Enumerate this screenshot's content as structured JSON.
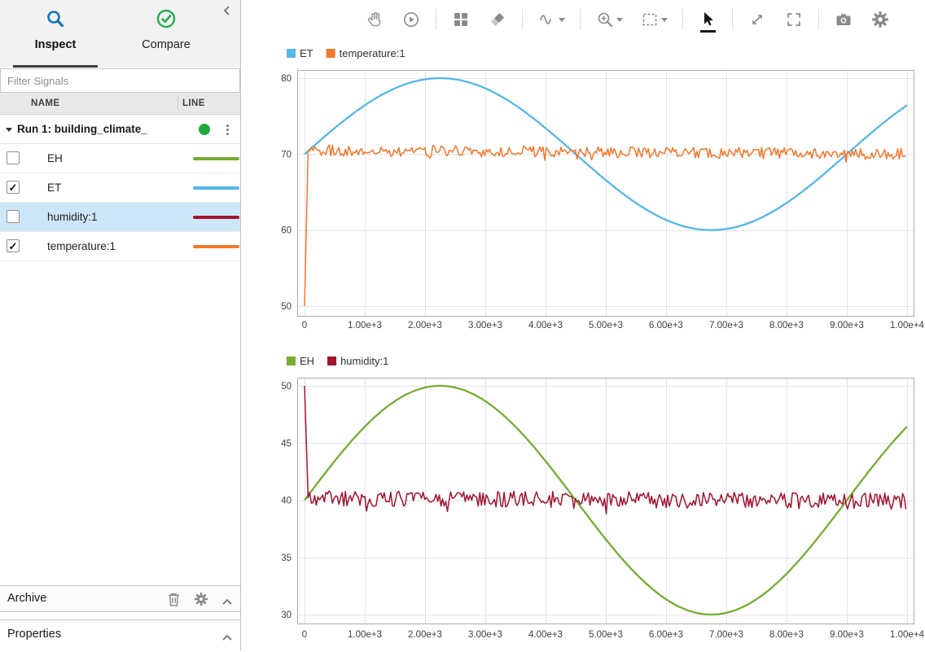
{
  "sidebar": {
    "tabs": [
      {
        "label": "Inspect",
        "active": true,
        "icon": "magnifier-icon"
      },
      {
        "label": "Compare",
        "active": false,
        "icon": "check-circle-icon"
      }
    ],
    "filter_placeholder": "Filter Signals",
    "table": {
      "columns": [
        "NAME",
        "LINE"
      ]
    },
    "run": {
      "label": "Run 1: building_climate_",
      "status_color": "#22a93c"
    },
    "signals": [
      {
        "name": "EH",
        "checked": false,
        "selected": false,
        "color": "#77ac30"
      },
      {
        "name": "ET",
        "checked": true,
        "selected": false,
        "color": "#53b7ea"
      },
      {
        "name": "humidity:1",
        "checked": false,
        "selected": true,
        "color": "#a2142f"
      },
      {
        "name": "temperature:1",
        "checked": true,
        "selected": false,
        "color": "#f4772a"
      }
    ],
    "archive": {
      "label": "Archive"
    },
    "properties": {
      "label": "Properties"
    }
  },
  "toolbar": {
    "tools": [
      "pan",
      "replay",
      "layout",
      "brush",
      "signal-trace",
      "zoom",
      "fit-to-view",
      "pointer",
      "resize-diagonal",
      "fullscreen",
      "snapshot",
      "settings"
    ],
    "selected_tool": "pointer"
  },
  "chart_data": [
    {
      "type": "line",
      "title": "",
      "legend": [
        {
          "label": "ET",
          "color": "#53b7ea"
        },
        {
          "label": "temperature:1",
          "color": "#f4772a"
        }
      ],
      "xlim": [
        0,
        10000
      ],
      "ylim": [
        50,
        80
      ],
      "grid": true,
      "xticks": [
        0,
        1000,
        2000,
        3000,
        4000,
        5000,
        6000,
        7000,
        8000,
        9000,
        10000
      ],
      "xtick_labels": [
        "0",
        "1.00e+3",
        "2.00e+3",
        "3.00e+3",
        "4.00e+3",
        "5.00e+3",
        "6.00e+3",
        "7.00e+3",
        "8.00e+3",
        "9.00e+3",
        "1.00e+4"
      ],
      "yticks": [
        50,
        60,
        70,
        80
      ],
      "series": [
        {
          "name": "ET",
          "color": "#53b7ea",
          "shape": "sine",
          "mean": 70,
          "amplitude": 10,
          "period": 9000,
          "sample_points": [
            [
              0,
              70
            ],
            [
              1125,
              77.1
            ],
            [
              2250,
              80
            ],
            [
              4500,
              70
            ],
            [
              6750,
              60
            ],
            [
              9000,
              70
            ],
            [
              10000,
              76.4
            ]
          ]
        },
        {
          "name": "temperature:1",
          "color": "#f4772a",
          "shape": "noisy",
          "start_value": 50,
          "rise_to_x": 60,
          "mean_start": 70.5,
          "mean_end": 70.0,
          "noise_amplitude": 0.75
        }
      ]
    },
    {
      "type": "line",
      "title": "",
      "legend": [
        {
          "label": "EH",
          "color": "#77ac30"
        },
        {
          "label": "humidity:1",
          "color": "#a2142f"
        }
      ],
      "xlim": [
        0,
        10000
      ],
      "ylim": [
        30,
        50
      ],
      "grid": true,
      "xticks": [
        0,
        1000,
        2000,
        3000,
        4000,
        5000,
        6000,
        7000,
        8000,
        9000,
        10000
      ],
      "xtick_labels": [
        "0",
        "1.00e+3",
        "2.00e+3",
        "3.00e+3",
        "4.00e+3",
        "5.00e+3",
        "6.00e+3",
        "7.00e+3",
        "8.00e+3",
        "9.00e+3",
        "1.00e+4"
      ],
      "yticks": [
        30,
        35,
        40,
        45,
        50
      ],
      "series": [
        {
          "name": "EH",
          "color": "#77ac30",
          "shape": "sine",
          "mean": 40,
          "amplitude": 10,
          "period": 9000,
          "sample_points": [
            [
              0,
              40
            ],
            [
              2250,
              50
            ],
            [
              4500,
              40
            ],
            [
              6750,
              30
            ],
            [
              9000,
              40
            ],
            [
              10000,
              46.4
            ]
          ]
        },
        {
          "name": "humidity:1",
          "color": "#a2142f",
          "shape": "noisy",
          "start_value": 50,
          "rise_to_x": 60,
          "mean_start": 40.2,
          "mean_end": 39.9,
          "noise_amplitude": 0.7
        }
      ]
    }
  ]
}
